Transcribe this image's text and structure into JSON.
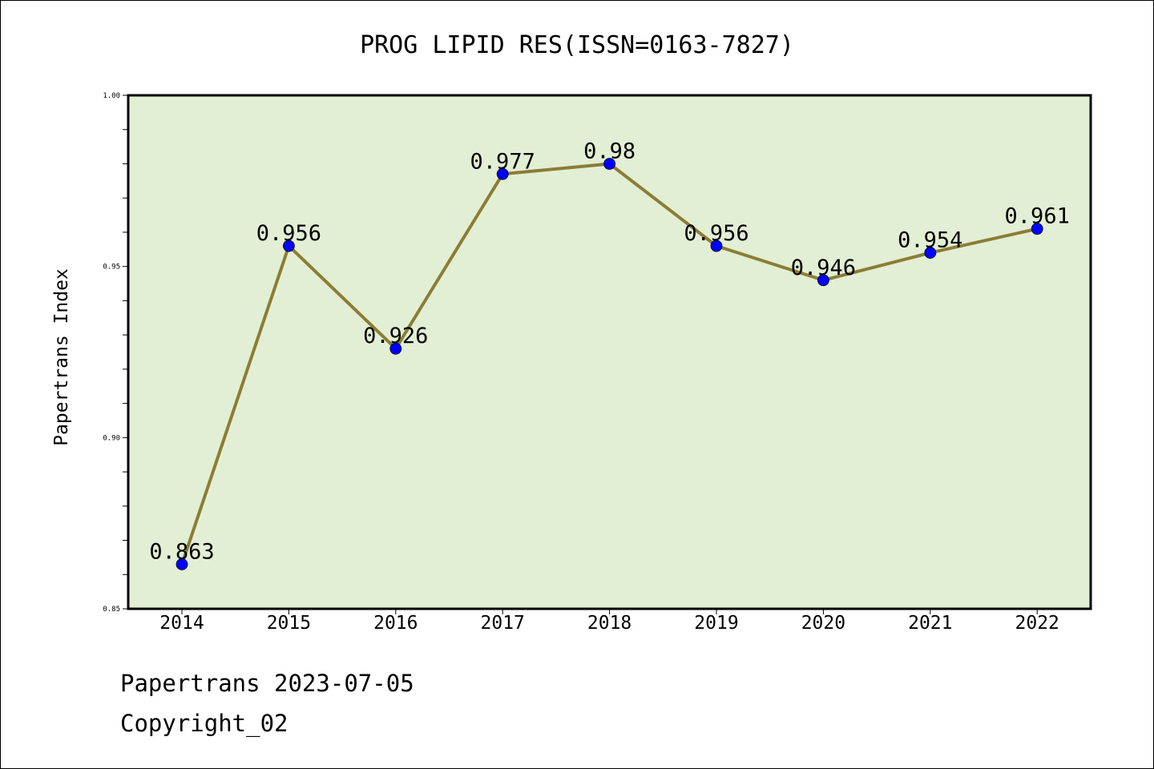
{
  "chart_data": {
    "type": "line",
    "title": "PROG LIPID RES(ISSN=0163-7827)",
    "xlabel": "",
    "ylabel": "Papertrans Index",
    "categories": [
      "2014",
      "2015",
      "2016",
      "2017",
      "2018",
      "2019",
      "2020",
      "2021",
      "2022"
    ],
    "series": [
      {
        "name": "Papertrans Index",
        "values": [
          0.863,
          0.956,
          0.926,
          0.977,
          0.98,
          0.956,
          0.946,
          0.954,
          0.961
        ],
        "data_labels": [
          "0.863",
          "0.956",
          "0.926",
          "0.977",
          "0.98",
          "0.956",
          "0.946",
          "0.954",
          "0.961"
        ],
        "line_color": "#8b7d35",
        "marker_color": "#0000ff"
      }
    ],
    "ylim": [
      0.85,
      1.0
    ],
    "yticks": [
      0.85,
      0.9,
      0.95,
      1.0
    ],
    "ytick_labels": [
      "0.85",
      "0.90",
      "0.95",
      "1.00"
    ],
    "plot_background": "#e2efd4",
    "grid": false,
    "legend": "none"
  },
  "footer": {
    "date_line": "Papertrans 2023-07-05",
    "copyright": "Copyright_02"
  }
}
